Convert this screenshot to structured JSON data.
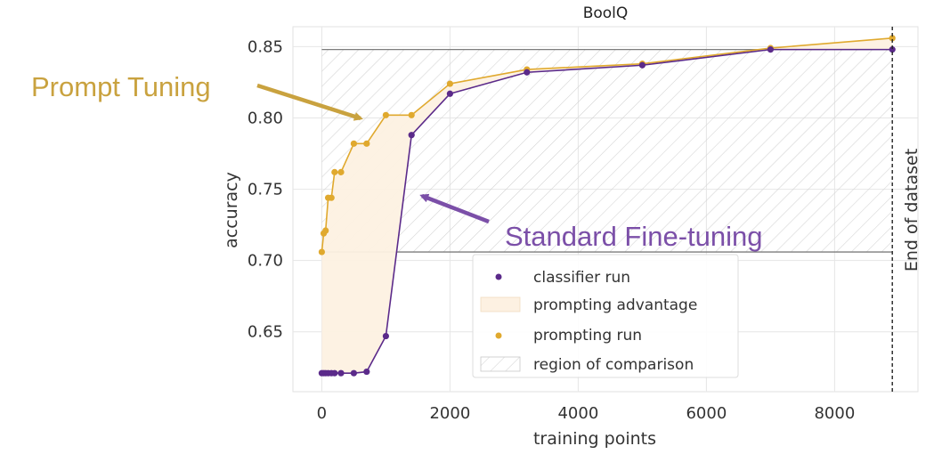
{
  "chart_data": {
    "type": "line",
    "title": "BoolQ",
    "xlabel": "training points",
    "ylabel": "accuracy",
    "xlim": [
      -450,
      9300
    ],
    "ylim": [
      0.608,
      0.864
    ],
    "xticks": [
      0,
      2000,
      4000,
      6000,
      8000
    ],
    "yticks": [
      0.65,
      0.7,
      0.75,
      0.8,
      0.85
    ],
    "grid": true,
    "series": [
      {
        "name": "classifier run",
        "color": "#5b2a8a",
        "points": [
          [
            0,
            0.621
          ],
          [
            30,
            0.621
          ],
          [
            60,
            0.621
          ],
          [
            100,
            0.621
          ],
          [
            150,
            0.621
          ],
          [
            200,
            0.621
          ],
          [
            300,
            0.621
          ],
          [
            500,
            0.621
          ],
          [
            700,
            0.622
          ],
          [
            1000,
            0.647
          ],
          [
            1400,
            0.788
          ],
          [
            2000,
            0.817
          ],
          [
            3200,
            0.832
          ],
          [
            5000,
            0.837
          ],
          [
            7000,
            0.848
          ],
          [
            8900,
            0.848
          ]
        ]
      },
      {
        "name": "prompting run",
        "color": "#e0a92e",
        "points": [
          [
            0,
            0.706
          ],
          [
            30,
            0.719
          ],
          [
            60,
            0.721
          ],
          [
            100,
            0.744
          ],
          [
            150,
            0.744
          ],
          [
            200,
            0.762
          ],
          [
            300,
            0.762
          ],
          [
            500,
            0.782
          ],
          [
            700,
            0.782
          ],
          [
            1000,
            0.802
          ],
          [
            1400,
            0.802
          ],
          [
            2000,
            0.824
          ],
          [
            3200,
            0.834
          ],
          [
            5000,
            0.838
          ],
          [
            7000,
            0.849
          ],
          [
            8900,
            0.856
          ]
        ]
      }
    ],
    "comparison_region": {
      "y_from": 0.706,
      "y_to": 0.848,
      "x_to": 8900
    },
    "end_of_dataset_x": 8900,
    "end_of_dataset_label": "End of dataset",
    "legend": {
      "placement": "lower-center",
      "items": [
        "classifier run",
        "prompting advantage",
        "prompting run",
        "region of comparison"
      ]
    },
    "annotations": [
      {
        "text": "Prompt Tuning",
        "color": "#c9a23f"
      },
      {
        "text": "Standard Fine-tuning",
        "color": "#7b4fa8"
      }
    ],
    "colors": {
      "classifier": "#5b2a8a",
      "prompting": "#e0a92e",
      "advantage_fill": "#fdf1e2",
      "prompt_callout": "#c9a23f",
      "finetune_callout": "#7b4fa8"
    }
  }
}
